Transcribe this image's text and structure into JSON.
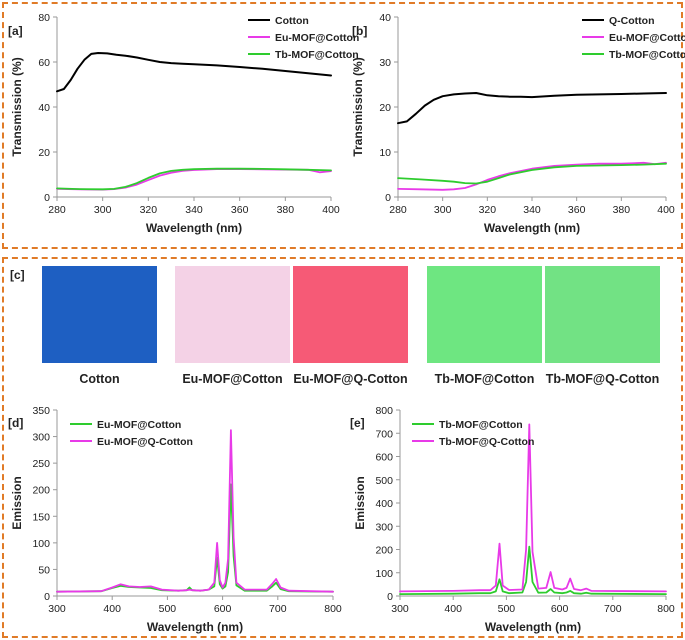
{
  "figure": {
    "frames": [
      "top-panels",
      "bottom-panels"
    ],
    "accent_color": "#e07b28"
  },
  "chart_data": [
    {
      "id": "a",
      "panel_label": "[a]",
      "type": "line",
      "xlabel": "Wavelength (nm)",
      "ylabel": "Transmission (%)",
      "xlim": [
        280,
        400
      ],
      "ylim": [
        0,
        80
      ],
      "xticks": [
        280,
        300,
        320,
        340,
        360,
        380,
        400
      ],
      "yticks": [
        0,
        20,
        40,
        60,
        80
      ],
      "legend_position": "top-right",
      "series": [
        {
          "name": "Cotton",
          "color": "#000000",
          "x": [
            280,
            283,
            286,
            289,
            292,
            295,
            298,
            302,
            306,
            310,
            315,
            320,
            325,
            330,
            335,
            340,
            350,
            360,
            370,
            380,
            390,
            400
          ],
          "y": [
            47,
            48,
            52,
            57,
            61,
            63.6,
            64,
            63.8,
            63.2,
            62.8,
            62,
            61,
            60,
            59.5,
            59.2,
            59,
            58.5,
            57.8,
            57,
            56,
            55,
            54
          ]
        },
        {
          "name": "Eu-MOF@Cotton",
          "color": "#e83ae8",
          "x": [
            280,
            290,
            300,
            305,
            310,
            315,
            320,
            325,
            330,
            335,
            340,
            350,
            360,
            370,
            380,
            390,
            395,
            400
          ],
          "y": [
            3.6,
            3.4,
            3.3,
            3.5,
            4.2,
            5.5,
            7.5,
            9.5,
            10.8,
            11.6,
            12,
            12.4,
            12.4,
            12.3,
            12.2,
            12.1,
            11,
            11.5
          ]
        },
        {
          "name": "Tb-MOF@Cotton",
          "color": "#2ecc2e",
          "x": [
            280,
            290,
            300,
            305,
            310,
            315,
            320,
            325,
            330,
            335,
            340,
            350,
            360,
            370,
            380,
            390,
            400
          ],
          "y": [
            3.8,
            3.5,
            3.4,
            3.6,
            4.5,
            6.2,
            8.5,
            10.5,
            11.6,
            12.1,
            12.4,
            12.6,
            12.6,
            12.5,
            12.3,
            12.1,
            11.8
          ]
        }
      ]
    },
    {
      "id": "b",
      "panel_label": "[b]",
      "type": "line",
      "xlabel": "Wavelength (nm)",
      "ylabel": "Transmission (%)",
      "xlim": [
        280,
        400
      ],
      "ylim": [
        0,
        40
      ],
      "xticks": [
        280,
        300,
        320,
        340,
        360,
        380,
        400
      ],
      "yticks": [
        0,
        10,
        20,
        30,
        40
      ],
      "legend_position": "top-right",
      "series": [
        {
          "name": "Q-Cotton",
          "color": "#000000",
          "x": [
            280,
            284,
            288,
            292,
            296,
            300,
            305,
            310,
            315,
            320,
            325,
            330,
            335,
            340,
            350,
            360,
            370,
            380,
            390,
            400
          ],
          "y": [
            16.4,
            16.8,
            18.5,
            20.3,
            21.6,
            22.4,
            22.8,
            23,
            23.1,
            22.6,
            22.4,
            22.3,
            22.3,
            22.2,
            22.5,
            22.7,
            22.8,
            22.9,
            23,
            23.1
          ]
        },
        {
          "name": "Eu-MOF@Cotton",
          "color": "#e83ae8",
          "x": [
            280,
            290,
            300,
            305,
            310,
            315,
            320,
            325,
            330,
            340,
            350,
            360,
            370,
            380,
            385,
            390,
            395,
            400
          ],
          "y": [
            1.8,
            1.7,
            1.6,
            1.7,
            2.0,
            2.8,
            3.8,
            4.6,
            5.3,
            6.3,
            6.9,
            7.2,
            7.4,
            7.4,
            7.5,
            7.6,
            7.3,
            7.6
          ]
        },
        {
          "name": "Tb-MOF@Cotton",
          "color": "#2ecc2e",
          "x": [
            280,
            290,
            300,
            305,
            310,
            315,
            320,
            325,
            330,
            340,
            350,
            360,
            370,
            380,
            390,
            400
          ],
          "y": [
            4.2,
            3.9,
            3.6,
            3.4,
            3.1,
            3.0,
            3.4,
            4.2,
            5.0,
            6.0,
            6.6,
            6.9,
            7.0,
            7.1,
            7.2,
            7.4
          ]
        }
      ]
    },
    {
      "id": "d",
      "panel_label": "[d]",
      "type": "line",
      "xlabel": "Wavelength (nm)",
      "ylabel": "Emission",
      "xlim": [
        300,
        800
      ],
      "ylim": [
        0,
        350
      ],
      "xticks": [
        300,
        400,
        500,
        600,
        700,
        800
      ],
      "yticks": [
        0,
        50,
        100,
        150,
        200,
        250,
        300,
        350
      ],
      "legend_position": "top-left",
      "series": [
        {
          "name": "Eu-MOF@Cotton",
          "color": "#2ecc2e",
          "x": [
            300,
            380,
            400,
            415,
            430,
            450,
            470,
            490,
            520,
            535,
            540,
            545,
            560,
            575,
            585,
            590,
            595,
            600,
            605,
            610,
            615,
            620,
            625,
            640,
            680,
            690,
            697,
            705,
            720,
            800
          ],
          "y": [
            8,
            9,
            15,
            19,
            17,
            16,
            15,
            11,
            10,
            11,
            16,
            11,
            10,
            12,
            18,
            72,
            22,
            14,
            18,
            45,
            210,
            75,
            20,
            10,
            10,
            18,
            25,
            13,
            9,
            8
          ]
        },
        {
          "name": "Eu-MOF@Q-Cotton",
          "color": "#e83ae8",
          "x": [
            300,
            380,
            400,
            415,
            430,
            450,
            470,
            490,
            520,
            535,
            540,
            545,
            560,
            575,
            585,
            590,
            595,
            600,
            605,
            610,
            615,
            620,
            625,
            640,
            680,
            690,
            697,
            705,
            720,
            800
          ],
          "y": [
            8,
            9,
            16,
            22,
            18,
            17,
            18,
            12,
            10,
            11,
            12,
            11,
            10,
            12,
            25,
            100,
            30,
            16,
            25,
            70,
            312,
            110,
            25,
            12,
            12,
            23,
            32,
            16,
            10,
            8
          ]
        }
      ]
    },
    {
      "id": "e",
      "panel_label": "[e]",
      "type": "line",
      "xlabel": "Wavelength (nm)",
      "ylabel": "Emission",
      "xlim": [
        300,
        800
      ],
      "ylim": [
        0,
        800
      ],
      "xticks": [
        300,
        400,
        500,
        600,
        700,
        800
      ],
      "yticks": [
        0,
        100,
        200,
        300,
        400,
        500,
        600,
        700,
        800
      ],
      "legend_position": "top-left",
      "series": [
        {
          "name": "Tb-MOF@Cotton",
          "color": "#2ecc2e",
          "x": [
            300,
            400,
            450,
            470,
            480,
            487,
            493,
            505,
            530,
            537,
            543,
            549,
            560,
            575,
            583,
            590,
            605,
            613,
            620,
            627,
            640,
            650,
            660,
            800
          ],
          "y": [
            8,
            10,
            12,
            12,
            20,
            72,
            20,
            12,
            15,
            60,
            212,
            60,
            14,
            15,
            30,
            15,
            12,
            15,
            22,
            12,
            10,
            14,
            10,
            8
          ]
        },
        {
          "name": "Tb-MOF@Q-Cotton",
          "color": "#e83ae8",
          "x": [
            300,
            400,
            450,
            470,
            480,
            487,
            493,
            505,
            530,
            537,
            543,
            549,
            560,
            575,
            583,
            590,
            605,
            613,
            620,
            627,
            640,
            650,
            660,
            800
          ],
          "y": [
            20,
            22,
            25,
            25,
            45,
            225,
            45,
            26,
            28,
            200,
            738,
            190,
            32,
            35,
            103,
            35,
            28,
            35,
            75,
            30,
            25,
            32,
            22,
            20
          ]
        }
      ]
    }
  ],
  "photos": [
    {
      "label": "Cotton",
      "color": "#1e5fc2"
    },
    {
      "label": "Eu-MOF@Cotton",
      "color": "#f4d2e6"
    },
    {
      "label": "Eu-MOF@Q-Cotton",
      "color": "#f65a76"
    },
    {
      "label": "Tb-MOF@Cotton",
      "color": "#6ee681"
    },
    {
      "label": "Tb-MOF@Q-Cotton",
      "color": "#72e284"
    }
  ],
  "photo_panel_label": "[c]"
}
